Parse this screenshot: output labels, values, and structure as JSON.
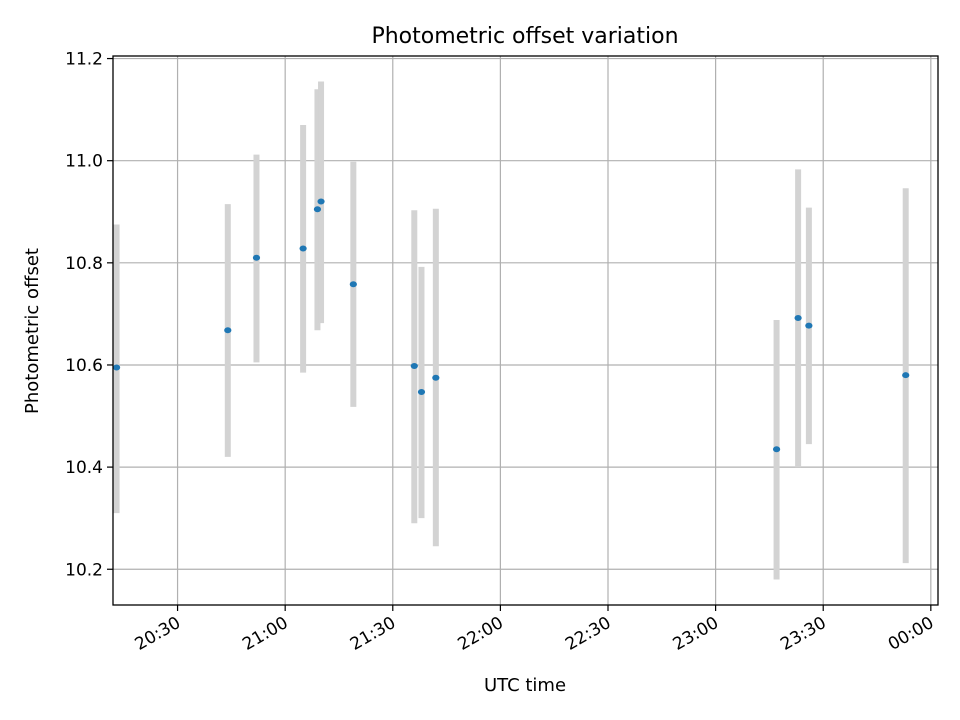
{
  "chart_data": {
    "type": "scatter",
    "title": "Photometric offset variation",
    "xlabel": "UTC time",
    "ylabel": "Photometric offset",
    "x_scale": "time",
    "xlim": [
      "20:12",
      "00:02"
    ],
    "ylim": [
      10.13,
      11.205
    ],
    "x_ticks": [
      "20:30",
      "21:00",
      "21:30",
      "22:00",
      "22:30",
      "23:00",
      "23:30",
      "00:00"
    ],
    "y_ticks": [
      10.2,
      10.4,
      10.6,
      10.8,
      11.0,
      11.2
    ],
    "y_tick_labels": [
      "10.2",
      "10.4",
      "10.6",
      "10.8",
      "11.0",
      "11.2"
    ],
    "grid": true,
    "point_color": "#1f77b4",
    "errorbar_color": "#d3d3d3",
    "points": [
      {
        "t": "20:13",
        "y": 10.595,
        "low": 10.31,
        "high": 10.875
      },
      {
        "t": "20:44",
        "y": 10.668,
        "low": 10.42,
        "high": 10.915
      },
      {
        "t": "20:52",
        "y": 10.81,
        "low": 10.605,
        "high": 11.012
      },
      {
        "t": "21:05",
        "y": 10.828,
        "low": 10.585,
        "high": 11.07
      },
      {
        "t": "21:09",
        "y": 10.905,
        "low": 10.668,
        "high": 11.14
      },
      {
        "t": "21:10",
        "y": 10.92,
        "low": 10.682,
        "high": 11.155
      },
      {
        "t": "21:19",
        "y": 10.758,
        "low": 10.518,
        "high": 10.998
      },
      {
        "t": "21:36",
        "y": 10.598,
        "low": 10.29,
        "high": 10.903
      },
      {
        "t": "21:38",
        "y": 10.547,
        "low": 10.3,
        "high": 10.792
      },
      {
        "t": "21:42",
        "y": 10.575,
        "low": 10.245,
        "high": 10.906
      },
      {
        "t": "23:17",
        "y": 10.435,
        "low": 10.18,
        "high": 10.688
      },
      {
        "t": "23:23",
        "y": 10.692,
        "low": 10.4,
        "high": 10.983
      },
      {
        "t": "23:26",
        "y": 10.677,
        "low": 10.445,
        "high": 10.908
      },
      {
        "t": "23:53",
        "y": 10.58,
        "low": 10.212,
        "high": 10.946
      }
    ]
  }
}
